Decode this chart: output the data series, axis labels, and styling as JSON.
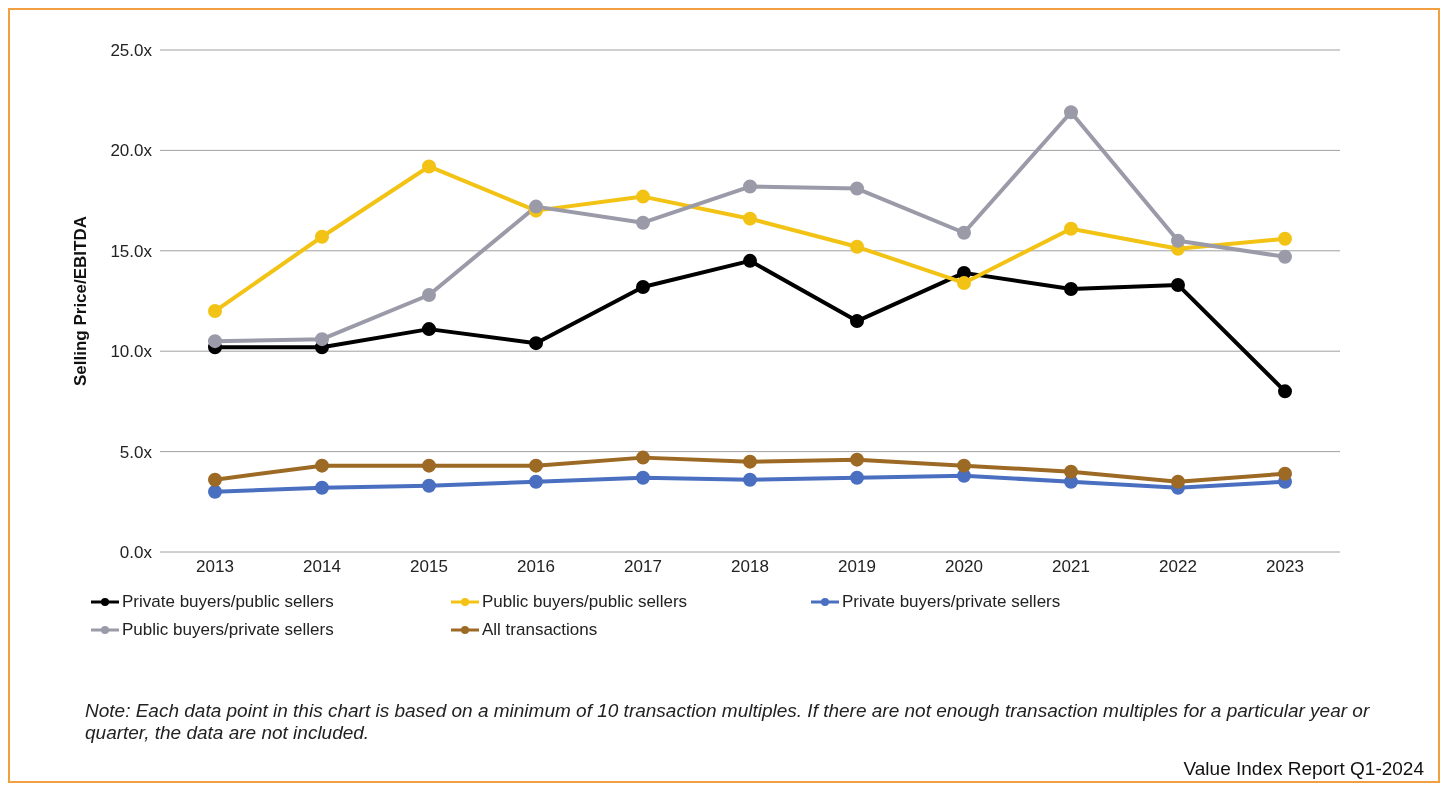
{
  "chart_data": {
    "type": "line",
    "ylabel": "Selling Price/EBITDA",
    "categories": [
      "2013",
      "2014",
      "2015",
      "2016",
      "2017",
      "2018",
      "2019",
      "2020",
      "2021",
      "2022",
      "2023"
    ],
    "series": [
      {
        "name": "Private buyers/public sellers",
        "color": "#000000",
        "values": [
          10.2,
          10.2,
          11.1,
          10.4,
          13.2,
          14.5,
          11.5,
          13.9,
          13.1,
          13.3,
          8.0
        ]
      },
      {
        "name": "Public buyers/public sellers",
        "color": "#f2c314",
        "values": [
          12.0,
          15.7,
          19.2,
          17.0,
          17.7,
          16.6,
          15.2,
          13.4,
          16.1,
          15.1,
          15.6
        ]
      },
      {
        "name": "Private buyers/private sellers",
        "color": "#4a6fc0",
        "values": [
          3.0,
          3.2,
          3.3,
          3.5,
          3.7,
          3.6,
          3.7,
          3.8,
          3.5,
          3.2,
          3.5
        ]
      },
      {
        "name": "Public buyers/private sellers",
        "color": "#9b9aa8",
        "values": [
          10.5,
          10.6,
          12.8,
          17.2,
          16.4,
          18.2,
          18.1,
          15.9,
          21.9,
          15.5,
          14.7
        ]
      },
      {
        "name": "All transactions",
        "color": "#9c6a24",
        "values": [
          3.6,
          4.3,
          4.3,
          4.3,
          4.7,
          4.5,
          4.6,
          4.3,
          4.0,
          3.5,
          3.9
        ]
      }
    ],
    "ylim": [
      0,
      25
    ],
    "yticks": [
      {
        "value": 0,
        "label": "0.0x"
      },
      {
        "value": 5,
        "label": "5.0x"
      },
      {
        "value": 10,
        "label": "10.0x"
      },
      {
        "value": 15,
        "label": "15.0x"
      },
      {
        "value": 20,
        "label": "20.0x"
      },
      {
        "value": 25,
        "label": "25.0x"
      }
    ],
    "grid": "y",
    "legend": "bottom",
    "marker": "circle",
    "line_style": "solid",
    "annotations": [
      "Note: Each data point in this chart is based on a minimum of 10 transaction multiples. If there are not enough transaction multiples for a particular year or quarter, the data are not included.",
      "Value Index Report Q1-2024"
    ]
  }
}
